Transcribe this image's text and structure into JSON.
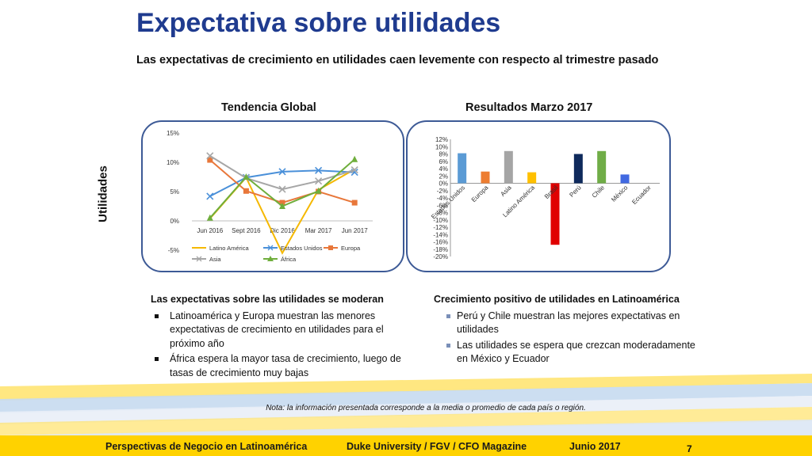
{
  "header": {
    "title": "Expectativa sobre utilidades",
    "subtitle": "Las expectativas de crecimiento en utilidades caen levemente con respecto al trimestre pasado"
  },
  "side_label": "Utilidades",
  "panels": {
    "left_title": "Tendencia Global",
    "right_title": "Resultados Marzo 2017"
  },
  "chart_data": [
    {
      "type": "line",
      "title": "Tendencia Global",
      "categories": [
        "Jun 2016",
        "Sept 2016",
        "Dic 2016",
        "Mar 2017",
        "Jun 2017"
      ],
      "y_ticks": [
        "15%",
        "10%",
        "5%",
        "0%",
        "-5%"
      ],
      "ylim": [
        -5,
        15
      ],
      "legend_position": "bottom",
      "series": [
        {
          "name": "Latino América",
          "color": "#f5b800",
          "marker": "none",
          "values": [
            0.4,
            7.4,
            -5.5,
            5.3,
            8.8
          ]
        },
        {
          "name": "Estados Unidos",
          "color": "#4a90d9",
          "marker": "x",
          "values": [
            4.2,
            7.4,
            8.4,
            8.6,
            8.3
          ]
        },
        {
          "name": "Europa",
          "color": "#e8773a",
          "marker": "square",
          "values": [
            10.4,
            5.1,
            3.1,
            5.0,
            3.1
          ]
        },
        {
          "name": "Asia",
          "color": "#a6a6a6",
          "marker": "x",
          "values": [
            11.1,
            7.3,
            5.4,
            6.8,
            8.7
          ]
        },
        {
          "name": "África",
          "color": "#6fae3c",
          "marker": "triangle",
          "values": [
            0.5,
            7.5,
            2.5,
            5.1,
            10.5
          ]
        }
      ]
    },
    {
      "type": "bar",
      "title": "Resultados Marzo 2017",
      "categories": [
        "Estados Unidos",
        "Europa",
        "Asia",
        "Latino América",
        "Brasil",
        "Perú",
        "Chile",
        "México",
        "Ecuador"
      ],
      "values": [
        8.2,
        3.2,
        8.8,
        3.0,
        -16.8,
        8.0,
        8.8,
        2.4,
        0
      ],
      "colors": [
        "#5b9bd5",
        "#ed7d31",
        "#a5a5a5",
        "#ffc000",
        "#e00000",
        "#0f2a5c",
        "#70ad47",
        "#4169e1",
        "#cccccc"
      ],
      "y_ticks": [
        "12%",
        "10%",
        "8%",
        "6%",
        "4%",
        "2%",
        "0%",
        "-2%",
        "-4%",
        "-6%",
        "-8%",
        "-10%",
        "-12%",
        "-14%",
        "-16%",
        "-18%",
        "-20%"
      ],
      "ylim": [
        -20,
        12
      ]
    }
  ],
  "left_text": {
    "title": "Las expectativas sobre las utilidades se moderan",
    "bullets": [
      "Latinoamérica y Europa muestran las menores expectativas de crecimiento en utilidades para el próximo año",
      "África espera la mayor tasa de crecimiento, luego de tasas de crecimiento muy bajas"
    ]
  },
  "right_text": {
    "title": "Crecimiento positivo de utilidades en Latinoamérica",
    "bullets": [
      "Perú y Chile muestran las mejores expectativas en utilidades",
      "Las utilidades se espera que crezcan moderadamente en México y Ecuador"
    ]
  },
  "note": "Nota: la información presentada corresponde a la media o promedio de cada país o región.",
  "footer": {
    "left": "Perspectivas de Negocio en Latinoamérica",
    "center": "Duke University / FGV / CFO Magazine",
    "date": "Junio 2017",
    "page": "7"
  },
  "colors": {
    "title": "#1f3b8f",
    "panel_border": "#3d5a96",
    "footer_bar": "#ffd200"
  }
}
